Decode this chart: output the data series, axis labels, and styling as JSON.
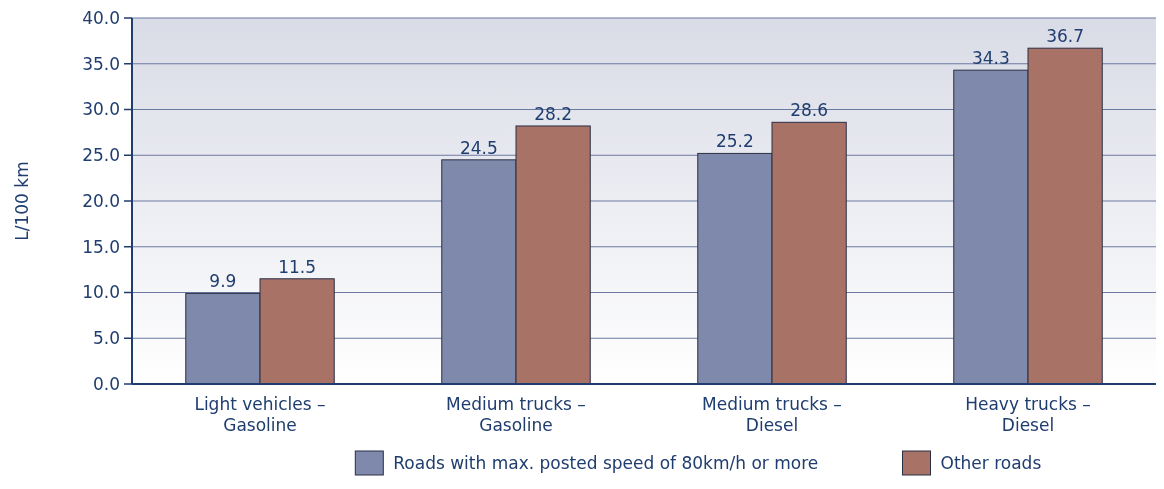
{
  "chart_data": {
    "type": "bar",
    "ylabel": "L/100 km",
    "categories": [
      "Light vehicles –\nGasoline",
      "Medium trucks –\nGasoline",
      "Medium trucks –\nDiesel",
      "Heavy trucks –\nDiesel"
    ],
    "series": [
      {
        "name": "Roads with max. posted speed of 80km/h or more",
        "color": "#7f89ab",
        "values": [
          9.9,
          24.5,
          25.2,
          34.3
        ]
      },
      {
        "name": "Other roads",
        "color": "#a87266",
        "values": [
          11.5,
          28.2,
          28.6,
          36.7
        ]
      }
    ],
    "ylim": [
      0,
      40
    ],
    "yticks": [
      {
        "value": 0,
        "label": "0.0"
      },
      {
        "value": 5,
        "label": "5.0"
      },
      {
        "value": 10,
        "label": "10.0"
      },
      {
        "value": 15,
        "label": "15.0"
      },
      {
        "value": 20,
        "label": "20.0"
      },
      {
        "value": 25,
        "label": "25.0"
      },
      {
        "value": 30,
        "label": "30.0"
      },
      {
        "value": 35,
        "label": "35.0"
      },
      {
        "value": 40,
        "label": "40.0"
      }
    ],
    "grid": "y",
    "legend": "bottom",
    "data_labels": true
  }
}
